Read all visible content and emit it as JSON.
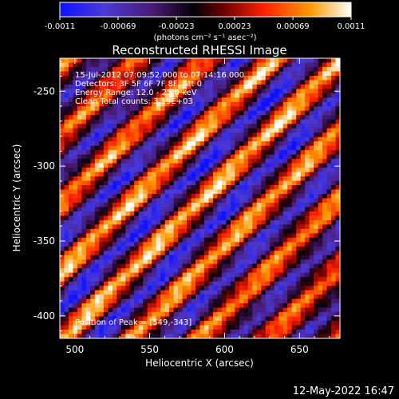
{
  "chart_data": {
    "type": "heatmap",
    "title": "Reconstructed RHESSI Image",
    "xlabel": "Heliocentric X (arcsec)",
    "ylabel": "Heliocentric Y (arcsec)",
    "xlim": [
      490,
      677
    ],
    "ylim": [
      -415,
      -228
    ],
    "x_ticks": [
      500,
      550,
      600,
      650
    ],
    "y_ticks": [
      -250,
      -300,
      -350,
      -400
    ],
    "colorbar": {
      "ticks": [
        "-0.0011",
        "-0.00069",
        "-0.00023",
        "0.00023",
        "0.00069",
        "0.0011"
      ],
      "range": [
        -0.0011,
        0.0011
      ],
      "label": "(photons cm⁻² s⁻¹ asec⁻²)"
    },
    "annotations": [
      "15-Jul-2012 07:09:52.000 to 07:14:16.000",
      "Detectors: 3F 5F 6F 7F 8F, Att 0",
      "Energy Range: 12.0 - 25.0 keV",
      "Clean     Total counts: 3.19E+03"
    ],
    "peak_label": "Position of Peak = [549,-343]",
    "footer_date": "12-May-2022 16:47",
    "colormap": [
      "#1a1aff",
      "#6040c0",
      "#50207a",
      "#000000",
      "#8a0000",
      "#ff2000",
      "#ff9000",
      "#ffffff"
    ]
  }
}
